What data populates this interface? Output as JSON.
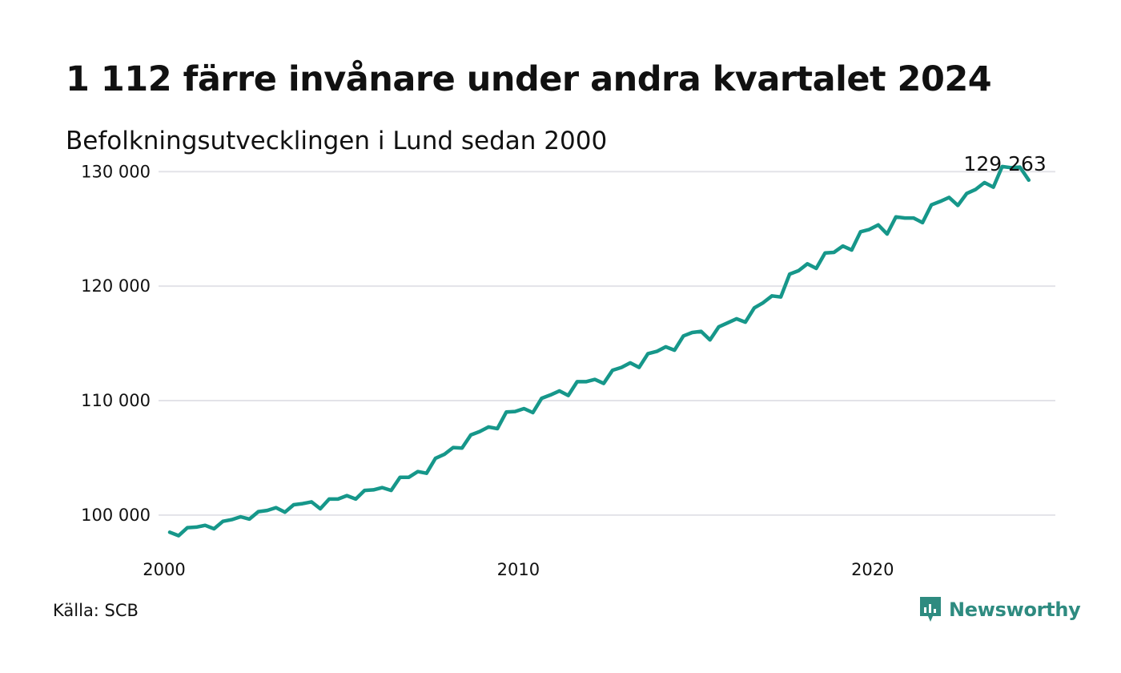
{
  "header": {
    "title": "1 112 färre invånare under andra kvartalet 2024",
    "subtitle": "Befolkningsutvecklingen i Lund sedan 2000"
  },
  "footer": {
    "source": "Källa: SCB",
    "brand": "Newsworthy",
    "brand_icon": "newsworthy-logo-icon"
  },
  "colors": {
    "line": "#16978a",
    "grid": "#e3e3e8",
    "brand": "#2e8b80"
  },
  "chart_data": {
    "type": "line",
    "title": "1 112 färre invånare under andra kvartalet 2024",
    "xlabel": "",
    "ylabel": "",
    "xlim": [
      2000,
      2025
    ],
    "ylim": [
      96000,
      131000
    ],
    "y_ticks": [
      100000,
      110000,
      120000,
      130000
    ],
    "y_tick_labels": [
      "100 000",
      "110 000",
      "120 000",
      "130 000"
    ],
    "x_ticks": [
      2000,
      2010,
      2020
    ],
    "x_tick_labels": [
      "2000",
      "2010",
      "2020"
    ],
    "grid": "horizontal",
    "legend": "none",
    "last_value_label": "129 263",
    "series": [
      {
        "x": [
          2000.0,
          2000.25,
          2000.5,
          2000.75,
          2001.0,
          2001.25,
          2001.5,
          2001.75,
          2002.0,
          2002.25,
          2002.5,
          2002.75,
          2003.0,
          2003.25,
          2003.5,
          2003.75,
          2004.0,
          2004.25,
          2004.5,
          2004.75,
          2005.0,
          2005.25,
          2005.5,
          2005.75,
          2006.0,
          2006.25,
          2006.5,
          2006.75,
          2007.0,
          2007.25,
          2007.5,
          2007.75,
          2008.0,
          2008.25,
          2008.5,
          2008.75,
          2009.0,
          2009.25,
          2009.5,
          2009.75,
          2010.0,
          2010.25,
          2010.5,
          2010.75,
          2011.0,
          2011.25,
          2011.5,
          2011.75,
          2012.0,
          2012.25,
          2012.5,
          2012.75,
          2013.0,
          2013.25,
          2013.5,
          2013.75,
          2014.0,
          2014.25,
          2014.5,
          2014.75,
          2015.0,
          2015.25,
          2015.5,
          2015.75,
          2016.0,
          2016.25,
          2016.5,
          2016.75,
          2017.0,
          2017.25,
          2017.5,
          2017.75,
          2018.0,
          2018.25,
          2018.5,
          2018.75,
          2019.0,
          2019.25,
          2019.5,
          2019.75,
          2020.0,
          2020.25,
          2020.5,
          2020.75,
          2021.0,
          2021.25,
          2021.5,
          2021.75,
          2022.0,
          2022.25,
          2022.5,
          2022.75,
          2023.0,
          2023.25,
          2023.5,
          2023.75,
          2024.0,
          2024.25
        ],
        "values": [
          98500,
          98200,
          98900,
          98950,
          99100,
          98800,
          99450,
          99600,
          99850,
          99650,
          100300,
          100400,
          100650,
          100250,
          100900,
          101000,
          101150,
          100550,
          101400,
          101400,
          101700,
          101400,
          102150,
          102200,
          102400,
          102150,
          103300,
          103300,
          103800,
          103650,
          104950,
          105300,
          105900,
          105850,
          107000,
          107300,
          107700,
          107550,
          109000,
          109050,
          109300,
          108950,
          110200,
          110500,
          110850,
          110450,
          111650,
          111650,
          111850,
          111500,
          112650,
          112900,
          113300,
          112900,
          114100,
          114300,
          114700,
          114400,
          115650,
          115950,
          116050,
          115300,
          116450,
          116800,
          117150,
          116850,
          118100,
          118550,
          119150,
          119050,
          121050,
          121350,
          121950,
          121550,
          122900,
          122950,
          123500,
          123150,
          124750,
          124950,
          125350,
          124550,
          126050,
          125950,
          125950,
          125550,
          127100,
          127400,
          127750,
          127050,
          128100,
          128450,
          129050,
          128650,
          130450,
          130350,
          130400,
          129263
        ]
      }
    ]
  }
}
